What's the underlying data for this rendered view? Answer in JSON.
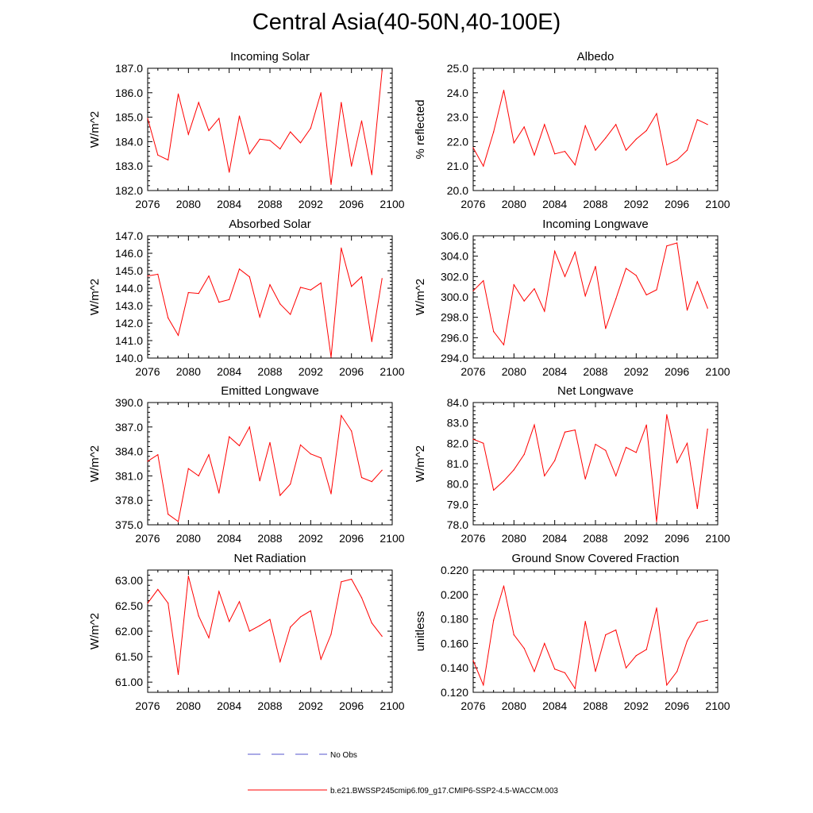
{
  "page": {
    "title": "Central Asia(40-50N,40-100E)"
  },
  "chart_data": [
    {
      "type": "line",
      "title": "Incoming Solar",
      "ylabel": "W/m^2",
      "x": [
        2076,
        2077,
        2078,
        2079,
        2080,
        2081,
        2082,
        2083,
        2084,
        2085,
        2086,
        2087,
        2088,
        2089,
        2090,
        2091,
        2092,
        2093,
        2094,
        2095,
        2096,
        2097,
        2098,
        2099
      ],
      "xlim": [
        2076,
        2100
      ],
      "xticks": [
        2076,
        2080,
        2084,
        2088,
        2092,
        2096,
        2100
      ],
      "xtick_labels": [
        "2076",
        "2080",
        "2084",
        "2088",
        "2092",
        "2096",
        "2100"
      ],
      "ylim": [
        182.0,
        187.0
      ],
      "yticks": [
        182.0,
        183.0,
        184.0,
        185.0,
        186.0,
        187.0
      ],
      "ytick_labels": [
        "182.0",
        "183.0",
        "184.0",
        "185.0",
        "186.0",
        "187.0"
      ],
      "series": [
        {
          "name": "b.e21.BWSSP245cmip6.f09_g17.CMIP6-SSP2-4.5-WACCM.003",
          "values": [
            184.95,
            183.45,
            183.25,
            185.95,
            184.3,
            185.6,
            184.45,
            184.95,
            182.75,
            185.05,
            183.5,
            184.1,
            184.05,
            183.7,
            184.4,
            183.95,
            184.55,
            186.0,
            182.25,
            185.6,
            183.0,
            184.85,
            182.65,
            186.9
          ]
        }
      ]
    },
    {
      "type": "line",
      "title": "Albedo",
      "ylabel": "% reflected",
      "x": [
        2076,
        2077,
        2078,
        2079,
        2080,
        2081,
        2082,
        2083,
        2084,
        2085,
        2086,
        2087,
        2088,
        2089,
        2090,
        2091,
        2092,
        2093,
        2094,
        2095,
        2096,
        2097,
        2098,
        2099
      ],
      "xlim": [
        2076,
        2100
      ],
      "xticks": [
        2076,
        2080,
        2084,
        2088,
        2092,
        2096,
        2100
      ],
      "xtick_labels": [
        "2076",
        "2080",
        "2084",
        "2088",
        "2092",
        "2096",
        "2100"
      ],
      "ylim": [
        20.0,
        25.0
      ],
      "yticks": [
        20.0,
        21.0,
        22.0,
        23.0,
        24.0,
        25.0
      ],
      "ytick_labels": [
        "20.0",
        "21.0",
        "22.0",
        "23.0",
        "24.0",
        "25.0"
      ],
      "series": [
        {
          "name": "b.e21.BWSSP245cmip6.f09_g17.CMIP6-SSP2-4.5-WACCM.003",
          "values": [
            21.75,
            21.0,
            22.4,
            24.1,
            21.95,
            22.6,
            21.45,
            22.7,
            21.5,
            21.6,
            21.05,
            22.65,
            21.65,
            22.15,
            22.7,
            21.65,
            22.1,
            22.45,
            23.15,
            21.05,
            21.25,
            21.65,
            22.9,
            22.7
          ]
        }
      ]
    },
    {
      "type": "line",
      "title": "Absorbed Solar",
      "ylabel": "W/m^2",
      "x": [
        2076,
        2077,
        2078,
        2079,
        2080,
        2081,
        2082,
        2083,
        2084,
        2085,
        2086,
        2087,
        2088,
        2089,
        2090,
        2091,
        2092,
        2093,
        2094,
        2095,
        2096,
        2097,
        2098,
        2099
      ],
      "xlim": [
        2076,
        2100
      ],
      "xticks": [
        2076,
        2080,
        2084,
        2088,
        2092,
        2096,
        2100
      ],
      "xtick_labels": [
        "2076",
        "2080",
        "2084",
        "2088",
        "2092",
        "2096",
        "2100"
      ],
      "ylim": [
        140.0,
        147.0
      ],
      "yticks": [
        140.0,
        141.0,
        142.0,
        143.0,
        144.0,
        145.0,
        146.0,
        147.0
      ],
      "ytick_labels": [
        "140.0",
        "141.0",
        "142.0",
        "143.0",
        "144.0",
        "145.0",
        "146.0",
        "147.0"
      ],
      "series": [
        {
          "name": "b.e21.BWSSP245cmip6.f09_g17.CMIP6-SSP2-4.5-WACCM.003",
          "values": [
            144.7,
            144.8,
            142.3,
            141.3,
            143.75,
            143.7,
            144.7,
            143.2,
            143.35,
            145.1,
            144.65,
            142.35,
            144.2,
            143.1,
            142.5,
            144.05,
            143.9,
            144.3,
            140.05,
            146.3,
            144.1,
            144.65,
            140.95,
            144.55
          ]
        }
      ]
    },
    {
      "type": "line",
      "title": "Incoming Longwave",
      "ylabel": "W/m^2",
      "x": [
        2076,
        2077,
        2078,
        2079,
        2080,
        2081,
        2082,
        2083,
        2084,
        2085,
        2086,
        2087,
        2088,
        2089,
        2090,
        2091,
        2092,
        2093,
        2094,
        2095,
        2096,
        2097,
        2098,
        2099
      ],
      "xlim": [
        2076,
        2100
      ],
      "xticks": [
        2076,
        2080,
        2084,
        2088,
        2092,
        2096,
        2100
      ],
      "xtick_labels": [
        "2076",
        "2080",
        "2084",
        "2088",
        "2092",
        "2096",
        "2100"
      ],
      "ylim": [
        294.0,
        306.0
      ],
      "yticks": [
        294.0,
        296.0,
        298.0,
        300.0,
        302.0,
        304.0,
        306.0
      ],
      "ytick_labels": [
        "294.0",
        "296.0",
        "298.0",
        "300.0",
        "302.0",
        "304.0",
        "306.0"
      ],
      "series": [
        {
          "name": "b.e21.BWSSP245cmip6.f09_g17.CMIP6-SSP2-4.5-WACCM.003",
          "values": [
            300.6,
            301.6,
            296.6,
            295.3,
            301.2,
            299.6,
            300.8,
            298.6,
            304.5,
            302.0,
            304.4,
            300.1,
            303.0,
            296.9,
            299.8,
            302.8,
            302.1,
            300.2,
            300.7,
            305.0,
            305.3,
            298.7,
            301.5,
            298.9
          ]
        }
      ]
    },
    {
      "type": "line",
      "title": "Emitted Longwave",
      "ylabel": "W/m^2",
      "x": [
        2076,
        2077,
        2078,
        2079,
        2080,
        2081,
        2082,
        2083,
        2084,
        2085,
        2086,
        2087,
        2088,
        2089,
        2090,
        2091,
        2092,
        2093,
        2094,
        2095,
        2096,
        2097,
        2098,
        2099
      ],
      "xlim": [
        2076,
        2100
      ],
      "xticks": [
        2076,
        2080,
        2084,
        2088,
        2092,
        2096,
        2100
      ],
      "xtick_labels": [
        "2076",
        "2080",
        "2084",
        "2088",
        "2092",
        "2096",
        "2100"
      ],
      "ylim": [
        375.0,
        390.0
      ],
      "yticks": [
        375.0,
        378.0,
        381.0,
        384.0,
        387.0,
        390.0
      ],
      "ytick_labels": [
        "375.0",
        "378.0",
        "381.0",
        "384.0",
        "387.0",
        "390.0"
      ],
      "series": [
        {
          "name": "b.e21.BWSSP245cmip6.f09_g17.CMIP6-SSP2-4.5-WACCM.003",
          "values": [
            382.8,
            383.6,
            376.3,
            375.4,
            381.9,
            381.0,
            383.6,
            378.9,
            385.8,
            384.7,
            387.0,
            380.4,
            385.1,
            378.6,
            380.0,
            384.8,
            383.7,
            383.2,
            378.8,
            388.4,
            386.5,
            380.8,
            380.3,
            381.7
          ]
        }
      ]
    },
    {
      "type": "line",
      "title": "Net Longwave",
      "ylabel": "W/m^2",
      "x": [
        2076,
        2077,
        2078,
        2079,
        2080,
        2081,
        2082,
        2083,
        2084,
        2085,
        2086,
        2087,
        2088,
        2089,
        2090,
        2091,
        2092,
        2093,
        2094,
        2095,
        2096,
        2097,
        2098,
        2099
      ],
      "xlim": [
        2076,
        2100
      ],
      "xticks": [
        2076,
        2080,
        2084,
        2088,
        2092,
        2096,
        2100
      ],
      "xtick_labels": [
        "2076",
        "2080",
        "2084",
        "2088",
        "2092",
        "2096",
        "2100"
      ],
      "ylim": [
        78.0,
        84.0
      ],
      "yticks": [
        78.0,
        79.0,
        80.0,
        81.0,
        82.0,
        83.0,
        84.0
      ],
      "ytick_labels": [
        "78.0",
        "79.0",
        "80.0",
        "81.0",
        "82.0",
        "83.0",
        "84.0"
      ],
      "series": [
        {
          "name": "b.e21.BWSSP245cmip6.f09_g17.CMIP6-SSP2-4.5-WACCM.003",
          "values": [
            82.2,
            82.0,
            79.7,
            80.15,
            80.7,
            81.45,
            82.9,
            80.4,
            81.15,
            82.55,
            82.65,
            80.25,
            81.95,
            81.65,
            80.4,
            81.8,
            81.55,
            82.9,
            78.15,
            83.4,
            81.05,
            82.0,
            78.8,
            82.7
          ]
        }
      ]
    },
    {
      "type": "line",
      "title": "Net Radiation",
      "ylabel": "W/m^2",
      "x": [
        2076,
        2077,
        2078,
        2079,
        2080,
        2081,
        2082,
        2083,
        2084,
        2085,
        2086,
        2087,
        2088,
        2089,
        2090,
        2091,
        2092,
        2093,
        2094,
        2095,
        2096,
        2097,
        2098,
        2099
      ],
      "xlim": [
        2076,
        2100
      ],
      "xticks": [
        2076,
        2080,
        2084,
        2088,
        2092,
        2096,
        2100
      ],
      "xtick_labels": [
        "2076",
        "2080",
        "2084",
        "2088",
        "2092",
        "2096",
        "2100"
      ],
      "ylim": [
        60.8,
        63.2
      ],
      "yticks": [
        61.0,
        61.5,
        62.0,
        62.5,
        63.0
      ],
      "ytick_labels": [
        "61.00",
        "61.50",
        "62.00",
        "62.50",
        "63.00"
      ],
      "series": [
        {
          "name": "b.e21.BWSSP245cmip6.f09_g17.CMIP6-SSP2-4.5-WACCM.003",
          "values": [
            62.55,
            62.82,
            62.55,
            61.15,
            63.08,
            62.3,
            61.87,
            62.78,
            62.19,
            62.58,
            62.0,
            62.11,
            62.23,
            61.4,
            62.08,
            62.28,
            62.4,
            61.45,
            61.94,
            62.97,
            63.02,
            62.66,
            62.16,
            61.9
          ]
        }
      ]
    },
    {
      "type": "line",
      "title": "Ground Snow Covered Fraction",
      "ylabel": "unitless",
      "x": [
        2076,
        2077,
        2078,
        2079,
        2080,
        2081,
        2082,
        2083,
        2084,
        2085,
        2086,
        2087,
        2088,
        2089,
        2090,
        2091,
        2092,
        2093,
        2094,
        2095,
        2096,
        2097,
        2098,
        2099
      ],
      "xlim": [
        2076,
        2100
      ],
      "xticks": [
        2076,
        2080,
        2084,
        2088,
        2092,
        2096,
        2100
      ],
      "xtick_labels": [
        "2076",
        "2080",
        "2084",
        "2088",
        "2092",
        "2096",
        "2100"
      ],
      "ylim": [
        0.12,
        0.22
      ],
      "yticks": [
        0.12,
        0.14,
        0.16,
        0.18,
        0.2,
        0.22
      ],
      "ytick_labels": [
        "0.120",
        "0.140",
        "0.160",
        "0.180",
        "0.200",
        "0.220"
      ],
      "series": [
        {
          "name": "b.e21.BWSSP245cmip6.f09_g17.CMIP6-SSP2-4.5-WACCM.003",
          "values": [
            0.146,
            0.126,
            0.179,
            0.207,
            0.167,
            0.156,
            0.137,
            0.16,
            0.139,
            0.136,
            0.123,
            0.178,
            0.137,
            0.167,
            0.171,
            0.14,
            0.15,
            0.155,
            0.189,
            0.126,
            0.137,
            0.162,
            0.177,
            0.179
          ]
        }
      ]
    }
  ],
  "legend": {
    "obs_label": "No Obs",
    "model_label": "b.e21.BWSSP245cmip6.f09_g17.CMIP6-SSP2-4.5-WACCM.003",
    "obs_color": "#5555cc",
    "model_color": "#ff0000"
  }
}
